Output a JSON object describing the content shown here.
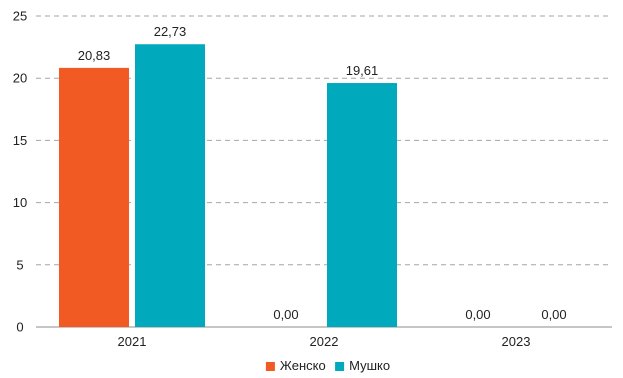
{
  "chart_data": {
    "type": "bar",
    "categories": [
      "2021",
      "2022",
      "2023"
    ],
    "series": [
      {
        "name": "Женско",
        "values": [
          20.83,
          0.0,
          0.0
        ],
        "labels": [
          "20,83",
          "0,00",
          "0,00"
        ],
        "color": "#f15a22"
      },
      {
        "name": "Мушко",
        "values": [
          22.73,
          19.61,
          0.0
        ],
        "labels": [
          "22,73",
          "19,61",
          "0,00"
        ],
        "color": "#00a9bb"
      }
    ],
    "title": "",
    "xlabel": "",
    "ylabel": "",
    "ylim": [
      0,
      25
    ],
    "yticks": [
      "0",
      "5",
      "10",
      "15",
      "20",
      "25"
    ],
    "grid": true,
    "legend": "bottom"
  }
}
